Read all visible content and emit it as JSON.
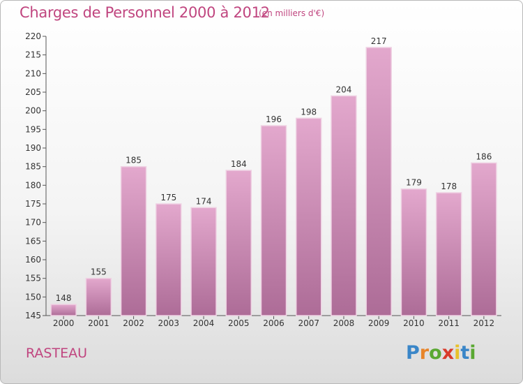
{
  "title": "Charges de Personnel 2000 à 2012",
  "unit_note": "(en milliers d'€)",
  "commune": "RASTEAU",
  "logo": {
    "letters": [
      "P",
      "r",
      "o",
      "x",
      "i",
      "t",
      "i"
    ],
    "colors": [
      "#3a86c8",
      "#e8852a",
      "#5aa832",
      "#d93b2b",
      "#e8c12a",
      "#3a86c8",
      "#5aa832"
    ]
  },
  "colors": {
    "bar": "#d795bd",
    "bar_dark": "#b0709a",
    "text": "#c0457f"
  },
  "chart_data": {
    "type": "bar",
    "title": "Charges de Personnel 2000 à 2012",
    "subtitle": "(en milliers d'€)",
    "categories": [
      "2000",
      "2001",
      "2002",
      "2003",
      "2004",
      "2005",
      "2006",
      "2007",
      "2008",
      "2009",
      "2010",
      "2011",
      "2012"
    ],
    "values": [
      148,
      155,
      185,
      175,
      174,
      184,
      196,
      198,
      204,
      217,
      179,
      178,
      186
    ],
    "ylim": [
      145,
      220
    ],
    "yticks": [
      145,
      150,
      155,
      160,
      165,
      170,
      175,
      180,
      185,
      190,
      195,
      200,
      205,
      210,
      215,
      220
    ],
    "grid": false,
    "data_labels": true
  }
}
